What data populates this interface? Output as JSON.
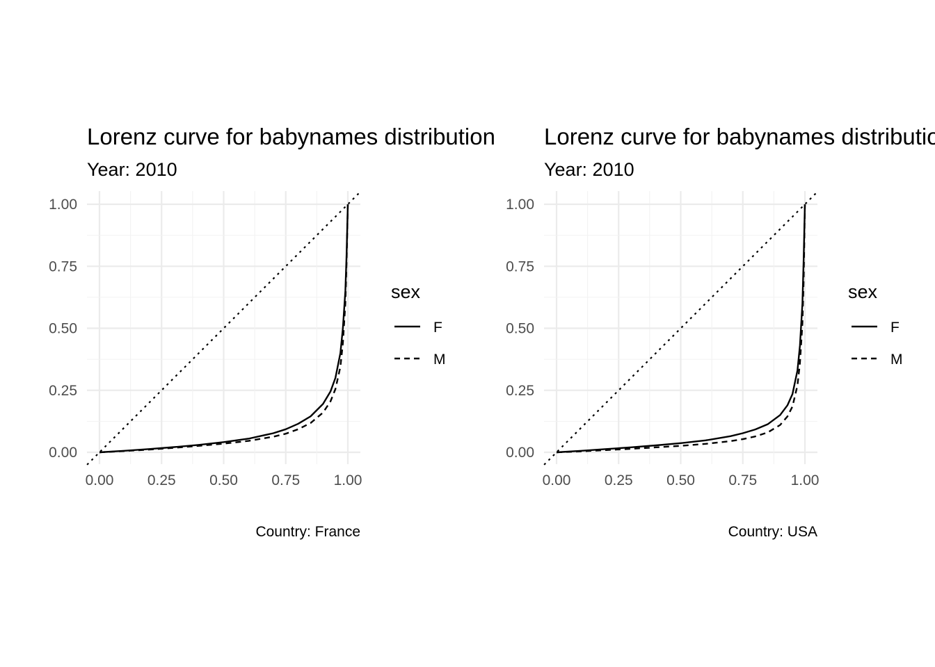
{
  "chart_data": [
    {
      "type": "line",
      "title": "Lorenz curve for babynames distribution",
      "subtitle": "Year: 2010",
      "caption": "Country: France",
      "xlabel": "",
      "ylabel": "",
      "xlim": [
        0,
        1
      ],
      "ylim": [
        0,
        1
      ],
      "x_ticks": [
        "0.00",
        "0.25",
        "0.50",
        "0.75",
        "1.00"
      ],
      "y_ticks": [
        "0.00",
        "0.25",
        "0.50",
        "0.75",
        "1.00"
      ],
      "grid": true,
      "legend": {
        "title": "sex",
        "position": "right"
      },
      "reference_line": {
        "slope": 1,
        "intercept": 0,
        "linetype": "dotted"
      },
      "series": [
        {
          "name": "F",
          "linetype": "solid",
          "x": [
            0,
            0.1,
            0.2,
            0.3,
            0.4,
            0.5,
            0.6,
            0.7,
            0.75,
            0.8,
            0.85,
            0.9,
            0.93,
            0.95,
            0.97,
            0.98,
            0.99,
            0.995,
            1
          ],
          "y": [
            0,
            0.006,
            0.013,
            0.021,
            0.03,
            0.041,
            0.055,
            0.077,
            0.093,
            0.115,
            0.145,
            0.195,
            0.245,
            0.3,
            0.4,
            0.5,
            0.65,
            0.8,
            1
          ]
        },
        {
          "name": "M",
          "linetype": "dashed",
          "x": [
            0,
            0.1,
            0.2,
            0.3,
            0.4,
            0.5,
            0.6,
            0.7,
            0.75,
            0.8,
            0.85,
            0.9,
            0.93,
            0.95,
            0.97,
            0.98,
            0.99,
            0.995,
            1
          ],
          "y": [
            0,
            0.005,
            0.011,
            0.018,
            0.026,
            0.035,
            0.046,
            0.063,
            0.075,
            0.093,
            0.118,
            0.16,
            0.205,
            0.255,
            0.345,
            0.44,
            0.6,
            0.77,
            1
          ]
        }
      ]
    },
    {
      "type": "line",
      "title": "Lorenz curve for babynames distribution",
      "subtitle": "Year: 2010",
      "caption": "Country: USA",
      "xlabel": "",
      "ylabel": "",
      "xlim": [
        0,
        1
      ],
      "ylim": [
        0,
        1
      ],
      "x_ticks": [
        "0.00",
        "0.25",
        "0.50",
        "0.75",
        "1.00"
      ],
      "y_ticks": [
        "0.00",
        "0.25",
        "0.50",
        "0.75",
        "1.00"
      ],
      "grid": true,
      "legend": {
        "title": "sex",
        "position": "right"
      },
      "reference_line": {
        "slope": 1,
        "intercept": 0,
        "linetype": "dotted"
      },
      "series": [
        {
          "name": "F",
          "linetype": "solid",
          "x": [
            0,
            0.1,
            0.2,
            0.3,
            0.4,
            0.5,
            0.6,
            0.7,
            0.75,
            0.8,
            0.85,
            0.9,
            0.93,
            0.95,
            0.97,
            0.98,
            0.99,
            0.995,
            1
          ],
          "y": [
            0,
            0.006,
            0.013,
            0.02,
            0.028,
            0.037,
            0.048,
            0.065,
            0.077,
            0.092,
            0.113,
            0.15,
            0.19,
            0.235,
            0.33,
            0.43,
            0.6,
            0.78,
            1
          ]
        },
        {
          "name": "M",
          "linetype": "dashed",
          "x": [
            0,
            0.1,
            0.2,
            0.3,
            0.4,
            0.5,
            0.6,
            0.7,
            0.75,
            0.8,
            0.85,
            0.9,
            0.93,
            0.95,
            0.97,
            0.98,
            0.99,
            0.995,
            1
          ],
          "y": [
            0,
            0.004,
            0.009,
            0.014,
            0.02,
            0.026,
            0.034,
            0.045,
            0.053,
            0.064,
            0.08,
            0.11,
            0.145,
            0.185,
            0.27,
            0.36,
            0.52,
            0.7,
            1
          ]
        }
      ]
    }
  ]
}
